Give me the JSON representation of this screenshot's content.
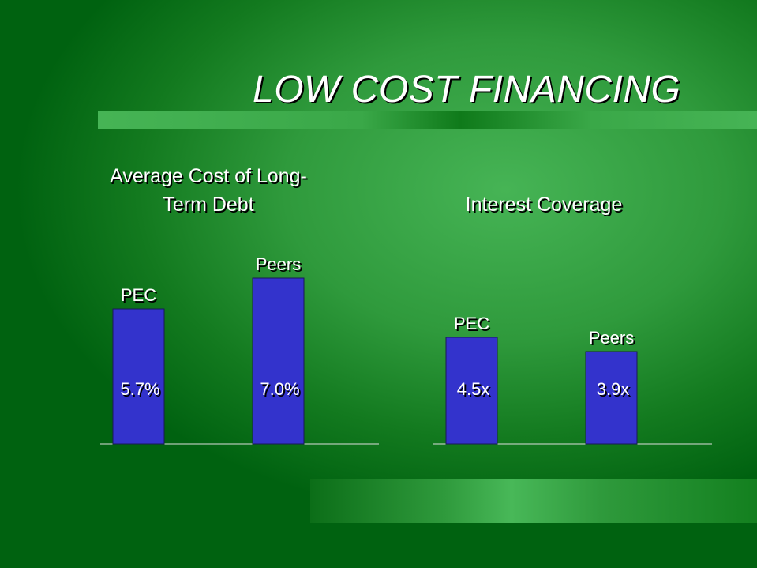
{
  "title": "LOW COST FINANCING",
  "chart_data": [
    {
      "type": "bar",
      "title": "Average Cost of Long-Term Debt",
      "categories": [
        "PEC",
        "Peers"
      ],
      "values": [
        5.7,
        7.0
      ],
      "value_labels": [
        "5.7%",
        "7.0%"
      ],
      "color": "#3333cc"
    },
    {
      "type": "bar",
      "title": "Interest Coverage",
      "categories": [
        "PEC",
        "Peers"
      ],
      "values": [
        4.5,
        3.9
      ],
      "value_labels": [
        "4.5x",
        "3.9x"
      ],
      "color": "#3333cc"
    }
  ]
}
